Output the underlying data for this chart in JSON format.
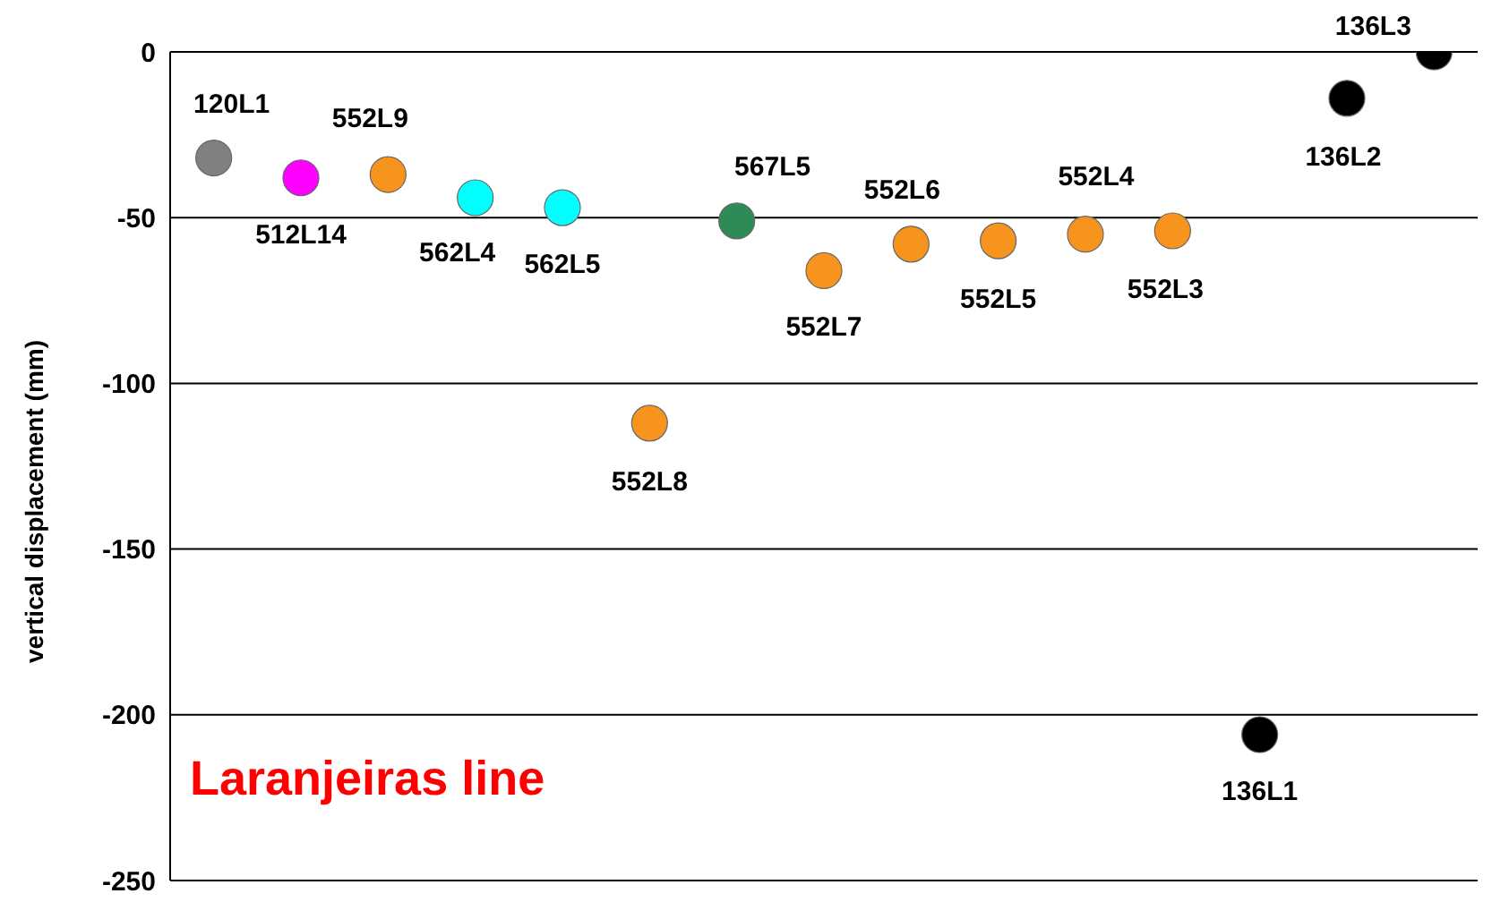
{
  "chart_data": {
    "type": "scatter",
    "ylabel": "vertical displacement (mm)",
    "categories": [
      null,
      null,
      null,
      null,
      null,
      null,
      null,
      null,
      null,
      null,
      null,
      null,
      null,
      null,
      null
    ],
    "values": [
      -32,
      -38,
      -37,
      -44,
      -47,
      -112,
      -51,
      -66,
      -58,
      -57,
      -55,
      -54,
      -206,
      -14,
      0
    ],
    "value_labels": [
      "120L1",
      "512L14",
      "552L9",
      "562L4",
      "562L5",
      "552L8",
      "567L5",
      "552L7",
      "552L6",
      "552L5",
      "552L4",
      "552L3",
      "136L1",
      "136L2",
      "136L3"
    ],
    "colors": [
      "#808080",
      "#ff00ff",
      "#f7941d",
      "#00ffff",
      "#00ffff",
      "#f7941d",
      "#2e8b57",
      "#f7941d",
      "#f7941d",
      "#f7941d",
      "#f7941d",
      "#f7941d",
      "#000000",
      "#000000",
      "#000000"
    ],
    "ylim": [
      -250,
      0
    ],
    "yticks": [
      -250,
      -200,
      -150,
      -100,
      -50,
      0
    ],
    "tick_labels": "y",
    "grid": "y",
    "marker": "circle",
    "annotations": [
      "Laranjeiras line"
    ]
  }
}
